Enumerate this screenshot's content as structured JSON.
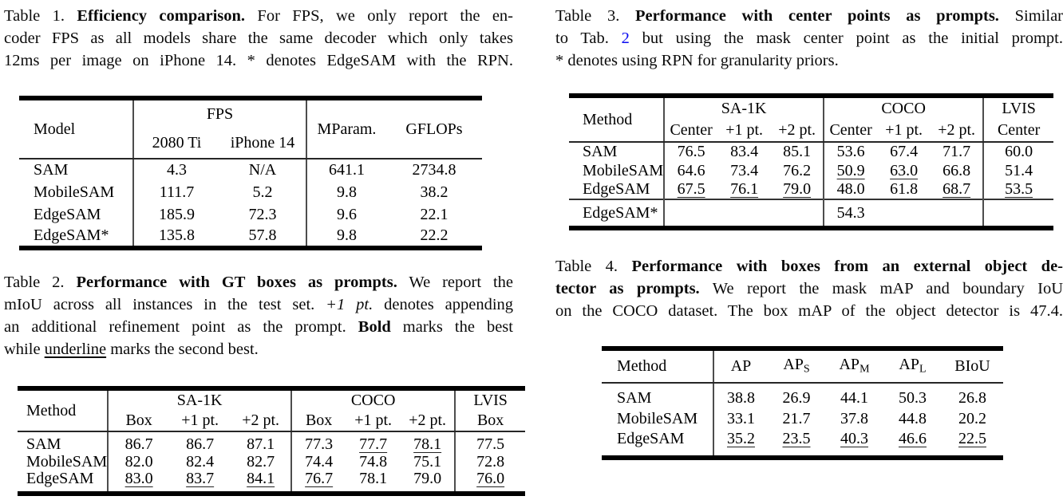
{
  "link_color": "#0b0bf0",
  "captions": {
    "c1": {
      "lines": [
        {
          "segs": [
            {
              "t": "Table 1. "
            },
            {
              "t": "Efficiency comparison.",
              "b": true
            },
            {
              "t": " For FPS, we only report the en-"
            }
          ]
        },
        {
          "segs": [
            {
              "t": "coder FPS as all models share the same decoder which only takes"
            }
          ]
        },
        {
          "segs": [
            {
              "t": "12ms per image on iPhone 14. * denotes EdgeSAM with the RPN."
            }
          ]
        }
      ]
    },
    "c2": {
      "lines": [
        {
          "segs": [
            {
              "t": "Table 2. "
            },
            {
              "t": "Performance with GT boxes as prompts.",
              "b": true
            },
            {
              "t": " We report the"
            }
          ]
        },
        {
          "segs": [
            {
              "t": "mIoU across all instances in the test set. "
            },
            {
              "t": "+1 pt.",
              "i": true
            },
            {
              "t": " denotes appending"
            }
          ]
        },
        {
          "segs": [
            {
              "t": "an additional refinement point as the prompt. "
            },
            {
              "t": "Bold",
              "b": true
            },
            {
              "t": " marks the best"
            }
          ]
        },
        {
          "last": true,
          "segs": [
            {
              "t": "while "
            },
            {
              "t": "underline",
              "u": true
            },
            {
              "t": " marks the second best."
            }
          ]
        }
      ]
    },
    "c3": {
      "lines": [
        {
          "segs": [
            {
              "t": "Table 3. "
            },
            {
              "t": "Performance with center points as prompts.",
              "b": true
            },
            {
              "t": " Similar"
            }
          ]
        },
        {
          "segs": [
            {
              "t": "to Tab. "
            },
            {
              "t": "2",
              "link": true
            },
            {
              "t": " but using the mask center point as the initial prompt."
            }
          ]
        },
        {
          "last": true,
          "segs": [
            {
              "t": "* denotes using RPN for granularity priors."
            }
          ]
        }
      ]
    },
    "c4": {
      "lines": [
        {
          "segs": [
            {
              "t": "Table 4. "
            },
            {
              "t": "Performance with boxes from an external object de-",
              "b": true
            }
          ]
        },
        {
          "segs": [
            {
              "t": "tector as prompts.",
              "b": true
            },
            {
              "t": " We report the mask mAP and boundary IoU"
            }
          ]
        },
        {
          "segs": [
            {
              "t": "on the COCO dataset. The box mAP of the object detector is 47.4."
            }
          ]
        }
      ]
    }
  },
  "tables": {
    "t1": {
      "name": "efficiency-comparison-table",
      "method_header": "Model",
      "groups": [
        {
          "label": "FPS",
          "cols": [
            "2080 Ti",
            "iPhone 14"
          ]
        },
        {
          "label": null,
          "cols": [
            "MParam.",
            "GFLOPs"
          ]
        }
      ],
      "rows": [
        {
          "method": "SAM",
          "bold_method": false,
          "cells": [
            {
              "v": "4.3"
            },
            {
              "v": "N/A"
            },
            {
              "v": "641.1"
            },
            {
              "v": "2734.8"
            }
          ]
        },
        {
          "method": "MobileSAM",
          "bold_method": false,
          "cells": [
            {
              "v": "111.7"
            },
            {
              "v": "5.2"
            },
            {
              "v": "9.8"
            },
            {
              "v": "38.2"
            }
          ]
        },
        {
          "method": "EdgeSAM",
          "bold_method": true,
          "cells": [
            {
              "v": "185.9",
              "s": "b"
            },
            {
              "v": "72.3",
              "s": "b"
            },
            {
              "v": "9.6",
              "s": "b"
            },
            {
              "v": "22.1",
              "s": "b"
            }
          ]
        },
        {
          "method": "EdgeSAM*",
          "bold_method": true,
          "cells": [
            {
              "v": "135.8"
            },
            {
              "v": "57.8"
            },
            {
              "v": "9.8"
            },
            {
              "v": "22.2"
            }
          ]
        }
      ]
    },
    "t2": {
      "name": "gt-boxes-performance-table",
      "method_header": "Method",
      "groups": [
        {
          "label": "SA-1K",
          "cols": [
            "Box",
            "+1 pt.",
            "+2 pt."
          ]
        },
        {
          "label": "COCO",
          "cols": [
            "Box",
            "+1 pt.",
            "+2 pt."
          ]
        },
        {
          "label": "LVIS",
          "cols": [
            "Box"
          ]
        }
      ],
      "rows": [
        {
          "method": "SAM",
          "bold_method": false,
          "cells": [
            {
              "v": "86.7",
              "s": "b"
            },
            {
              "v": "86.7",
              "s": "b"
            },
            {
              "v": "87.1",
              "s": "b"
            },
            {
              "v": "77.3",
              "s": "b"
            },
            {
              "v": "77.7",
              "s": "u"
            },
            {
              "v": "78.1",
              "s": "u"
            },
            {
              "v": "77.5",
              "s": "b"
            }
          ]
        },
        {
          "method": "MobileSAM",
          "bold_method": false,
          "cells": [
            {
              "v": "82.0"
            },
            {
              "v": "82.4"
            },
            {
              "v": "82.7"
            },
            {
              "v": "74.4"
            },
            {
              "v": "74.8"
            },
            {
              "v": "75.1"
            },
            {
              "v": "72.8"
            }
          ]
        },
        {
          "method": "EdgeSAM",
          "bold_method": true,
          "cells": [
            {
              "v": "83.0",
              "s": "u"
            },
            {
              "v": "83.7",
              "s": "u"
            },
            {
              "v": "84.1",
              "s": "u"
            },
            {
              "v": "76.7",
              "s": "u"
            },
            {
              "v": "78.1",
              "s": "b"
            },
            {
              "v": "79.0",
              "s": "b"
            },
            {
              "v": "76.0",
              "s": "u"
            }
          ]
        }
      ]
    },
    "t3": {
      "name": "center-points-performance-table",
      "method_header": "Method",
      "groups": [
        {
          "label": "SA-1K",
          "cols": [
            "Center",
            "+1 pt.",
            "+2 pt."
          ]
        },
        {
          "label": "COCO",
          "cols": [
            "Center",
            "+1 pt.",
            "+2 pt."
          ]
        },
        {
          "label": "LVIS",
          "cols": [
            "Center"
          ]
        }
      ],
      "rows": [
        {
          "method": "SAM",
          "bold_method": false,
          "cells": [
            {
              "v": "76.5",
              "s": "b"
            },
            {
              "v": "83.4",
              "s": "b"
            },
            {
              "v": "85.1",
              "s": "b"
            },
            {
              "v": "53.6",
              "s": "b"
            },
            {
              "v": "67.4",
              "s": "b"
            },
            {
              "v": "71.7",
              "s": "b"
            },
            {
              "v": "60.0",
              "s": "b"
            }
          ]
        },
        {
          "method": "MobileSAM",
          "bold_method": false,
          "cells": [
            {
              "v": "64.6"
            },
            {
              "v": "73.4"
            },
            {
              "v": "76.2"
            },
            {
              "v": "50.9",
              "s": "u"
            },
            {
              "v": "63.0",
              "s": "u"
            },
            {
              "v": "66.8"
            },
            {
              "v": "51.4"
            }
          ]
        },
        {
          "method": "EdgeSAM",
          "bold_method": true,
          "cells": [
            {
              "v": "67.5",
              "s": "u"
            },
            {
              "v": "76.1",
              "s": "u"
            },
            {
              "v": "79.0",
              "s": "u"
            },
            {
              "v": "48.0"
            },
            {
              "v": "61.8"
            },
            {
              "v": "68.7",
              "s": "u"
            },
            {
              "v": "53.5",
              "s": "u"
            }
          ]
        }
      ],
      "extra_rows": [
        {
          "method": "EdgeSAM*",
          "bold_method": true,
          "cells": [
            {
              "v": ""
            },
            {
              "v": ""
            },
            {
              "v": ""
            },
            {
              "v": "54.3"
            },
            {
              "v": ""
            },
            {
              "v": ""
            },
            {
              "v": ""
            }
          ]
        }
      ]
    },
    "t4": {
      "name": "external-detector-boxes-table",
      "method_header": "Method",
      "single_header": true,
      "groups": [
        {
          "label": null,
          "cols": [
            {
              "t": "AP"
            },
            {
              "t": "AP",
              "sub": "S"
            },
            {
              "t": "AP",
              "sub": "M"
            },
            {
              "t": "AP",
              "sub": "L"
            },
            {
              "t": "BIoU"
            }
          ]
        }
      ],
      "rows": [
        {
          "method": "SAM",
          "bold_method": false,
          "cells": [
            {
              "v": "38.8",
              "s": "b"
            },
            {
              "v": "26.9",
              "s": "b"
            },
            {
              "v": "44.1",
              "s": "b"
            },
            {
              "v": "50.3",
              "s": "b"
            },
            {
              "v": "26.8",
              "s": "b"
            }
          ]
        },
        {
          "method": "MobileSAM",
          "bold_method": false,
          "cells": [
            {
              "v": "33.1"
            },
            {
              "v": "21.7"
            },
            {
              "v": "37.8"
            },
            {
              "v": "44.8"
            },
            {
              "v": "20.2"
            }
          ]
        },
        {
          "method": "EdgeSAM",
          "bold_method": true,
          "cells": [
            {
              "v": "35.2",
              "s": "u"
            },
            {
              "v": "23.5",
              "s": "u"
            },
            {
              "v": "40.3",
              "s": "u"
            },
            {
              "v": "46.6",
              "s": "u"
            },
            {
              "v": "22.5",
              "s": "u"
            }
          ]
        }
      ]
    }
  }
}
